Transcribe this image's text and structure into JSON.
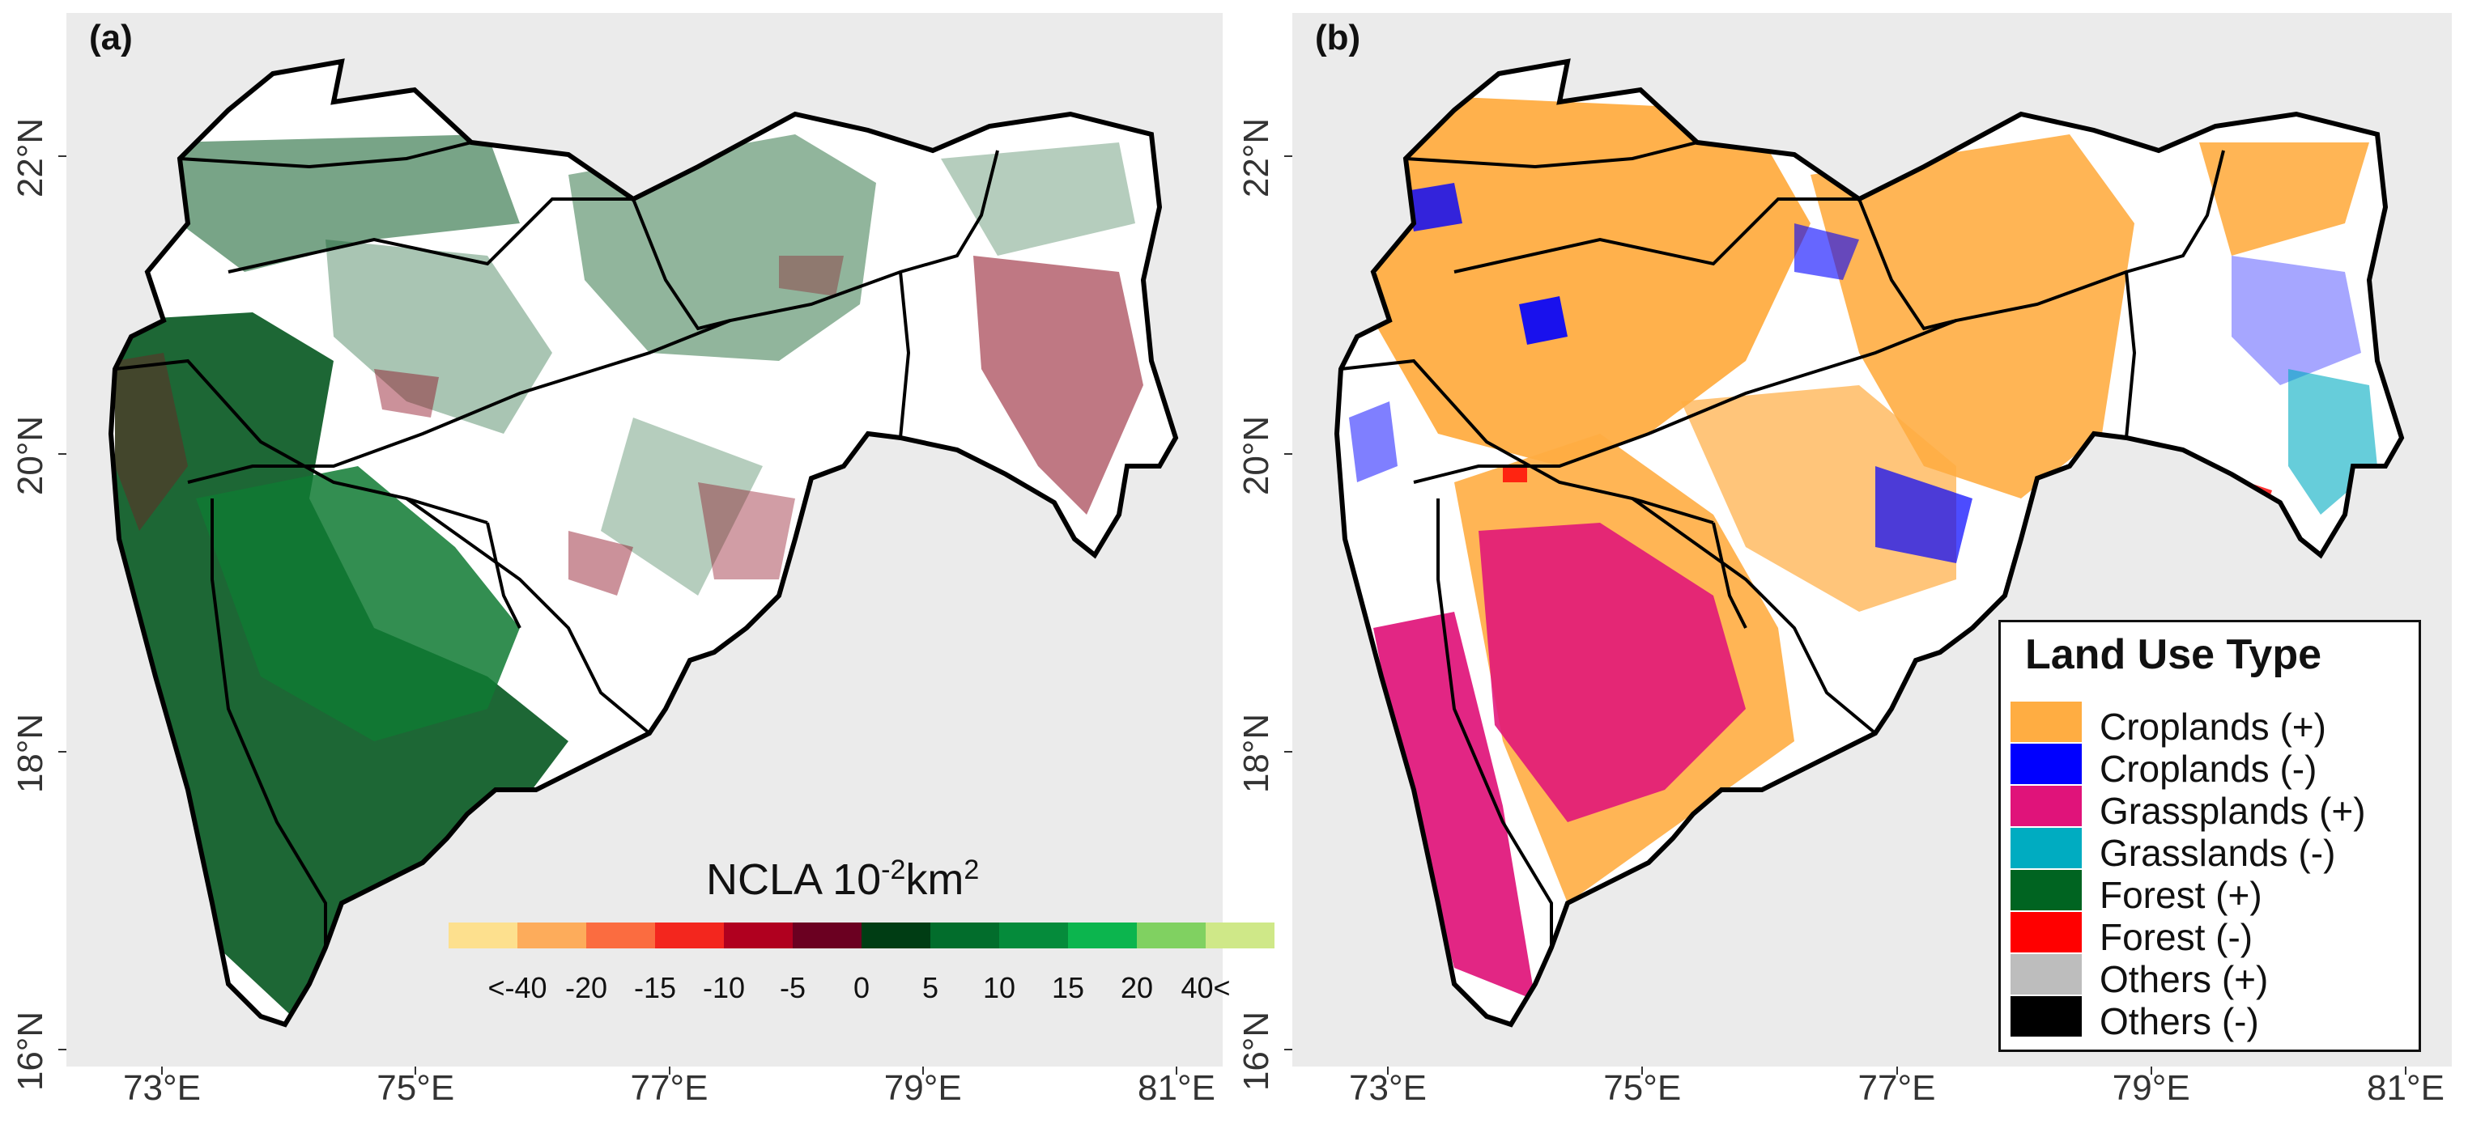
{
  "panel_a": {
    "tag": "(a)",
    "colorbar": {
      "title_main": "NCLA 10",
      "title_sup1": "-2",
      "title_unit": "km",
      "title_sup2": "2",
      "colors": [
        "#fde08e",
        "#fdac5b",
        "#fb6c40",
        "#f3261e",
        "#b0001f",
        "#6b0021",
        "#003d14",
        "#026d2c",
        "#058b3b",
        "#0cb54e",
        "#80d161",
        "#cfe888"
      ],
      "labels": [
        "<-40",
        "-20",
        "-15",
        "-10",
        "-5",
        "0",
        "5",
        "10",
        "15",
        "20",
        "40<"
      ]
    }
  },
  "panel_b": {
    "tag": "(b)",
    "legend": {
      "title": "Land Use Type",
      "items": [
        {
          "label": "Croplands (+)",
          "color": "#ffad42"
        },
        {
          "label": "Croplands (-)",
          "color": "#0000ff"
        },
        {
          "label": "Grassplands (+)",
          "color": "#e0137a"
        },
        {
          "label": "Grasslands (-)",
          "color": "#00acc1"
        },
        {
          "label": "Forest (+)",
          "color": "#006421"
        },
        {
          "label": "Forest (-)",
          "color": "#ff0000"
        },
        {
          "label": "Others (+)",
          "color": "#bdbdbd"
        },
        {
          "label": "Others (-)",
          "color": "#000000"
        }
      ]
    }
  },
  "axes": {
    "x_ticks": [
      "73°E",
      "75°E",
      "77°E",
      "79°E",
      "81°E"
    ],
    "y_ticks": [
      "22°N",
      "20°N",
      "18°N",
      "16°N"
    ]
  }
}
